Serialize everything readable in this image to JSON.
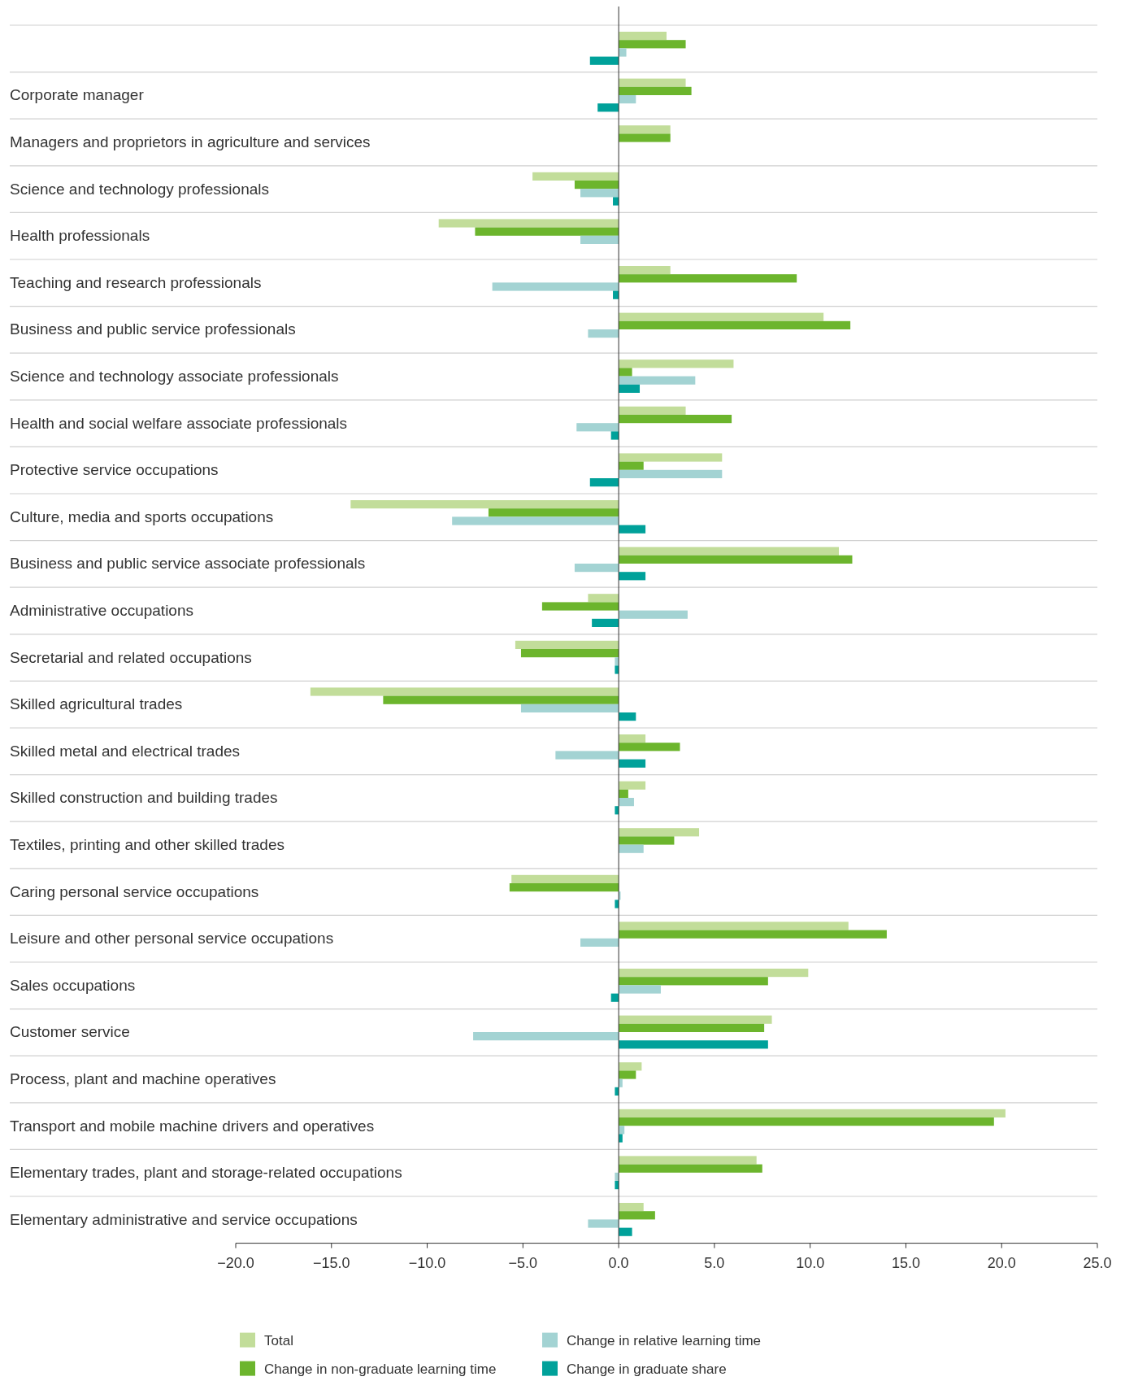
{
  "chart_data": {
    "type": "bar",
    "orientation": "horizontal",
    "legend": "bottom",
    "categories": [
      null,
      "Corporate manager",
      "Managers and proprietors in agriculture and services",
      "Science and technology professionals",
      "Health professionals",
      "Teaching and research professionals",
      "Business and public service professionals",
      "Science and technology associate professionals",
      "Health and social welfare associate professionals",
      "Protective service occupations",
      "Culture, media and sports occupations",
      "Business and public service associate professionals",
      "Administrative occupations",
      "Secretarial and related occupations",
      "Skilled agricultural trades",
      "Skilled metal and electrical trades",
      "Skilled construction and building trades",
      "Textiles, printing and other skilled trades",
      "Caring personal service occupations",
      "Leisure and other personal service occupations",
      "Sales occupations",
      "Customer service",
      "Process, plant and machine operatives",
      "Transport and mobile machine drivers and operatives",
      "Elementary trades, plant and storage-related occupations",
      "Elementary administrative and service occupations"
    ],
    "series": [
      {
        "name": "Total",
        "color": "#c2dd9a",
        "values": [
          2.5,
          3.5,
          2.7,
          -4.5,
          -9.4,
          2.7,
          10.7,
          6.0,
          3.5,
          5.4,
          -14.0,
          11.5,
          -1.6,
          -5.4,
          -16.1,
          1.4,
          1.4,
          4.2,
          -5.6,
          12.0,
          9.9,
          8.0,
          1.2,
          20.2,
          7.2,
          1.3
        ]
      },
      {
        "name": "Change in non-graduate learning time",
        "color": "#6cb52d",
        "values": [
          3.5,
          3.8,
          2.7,
          -2.3,
          -7.5,
          9.3,
          12.1,
          0.7,
          5.9,
          1.3,
          -6.8,
          12.2,
          -4.0,
          -5.1,
          -12.3,
          3.2,
          0.5,
          2.9,
          -5.7,
          14.0,
          7.8,
          7.6,
          0.9,
          19.6,
          7.5,
          1.9
        ]
      },
      {
        "name": "Change in relative learning time",
        "color": "#a3d3d3",
        "values": [
          0.4,
          0.9,
          null,
          -2.0,
          -2.0,
          -6.6,
          -1.6,
          4.0,
          -2.2,
          5.4,
          -8.7,
          -2.3,
          3.6,
          -0.2,
          -5.1,
          -3.3,
          0.8,
          1.3,
          0.1,
          -2.0,
          2.2,
          -7.6,
          0.2,
          0.3,
          -0.2,
          -1.6
        ]
      },
      {
        "name": "Change in graduate share",
        "color": "#00a19a",
        "values": [
          -1.5,
          -1.1,
          null,
          -0.3,
          null,
          -0.3,
          null,
          1.1,
          -0.4,
          -1.5,
          1.4,
          1.4,
          -1.4,
          -0.2,
          0.9,
          1.4,
          -0.2,
          null,
          -0.2,
          null,
          -0.4,
          7.8,
          -0.2,
          0.2,
          -0.2,
          0.7
        ]
      }
    ],
    "xlim": [
      -20,
      25
    ],
    "xticks": [
      {
        "value": -20,
        "label": "−20.0"
      },
      {
        "value": -15,
        "label": "−15.0"
      },
      {
        "value": -10,
        "label": "−10.0"
      },
      {
        "value": -5,
        "label": "−5.0"
      },
      {
        "value": 0,
        "label": "0.0"
      },
      {
        "value": 5,
        "label": "5.0"
      },
      {
        "value": 10,
        "label": "10.0"
      },
      {
        "value": 15,
        "label": "15.0"
      },
      {
        "value": 20,
        "label": "20.0"
      },
      {
        "value": 25,
        "label": "25.0"
      }
    ]
  }
}
